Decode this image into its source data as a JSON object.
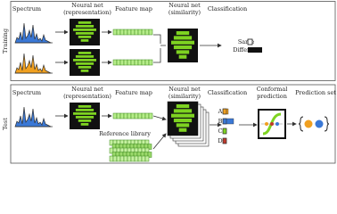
{
  "training": {
    "label": "Training",
    "headers": [
      [
        "Spectrum"
      ],
      [
        "Neural net",
        "(representation)"
      ],
      [
        "Feature map"
      ],
      [
        "Neural net",
        "(similarity)"
      ],
      [
        "Classification"
      ]
    ],
    "classes": [
      "Same",
      "Different"
    ]
  },
  "test": {
    "label": "Test",
    "headers": [
      [
        "Spectrum"
      ],
      [
        "Neural net",
        "(representation)"
      ],
      [
        "Feature map"
      ],
      [
        "Neural net",
        "(similarity)"
      ],
      [
        "Classification"
      ],
      [
        "Conformal",
        "prediction"
      ],
      [
        "Prediction set"
      ]
    ],
    "reference_library": "Reference library",
    "classes": [
      "A",
      "B",
      "C",
      "D"
    ]
  }
}
